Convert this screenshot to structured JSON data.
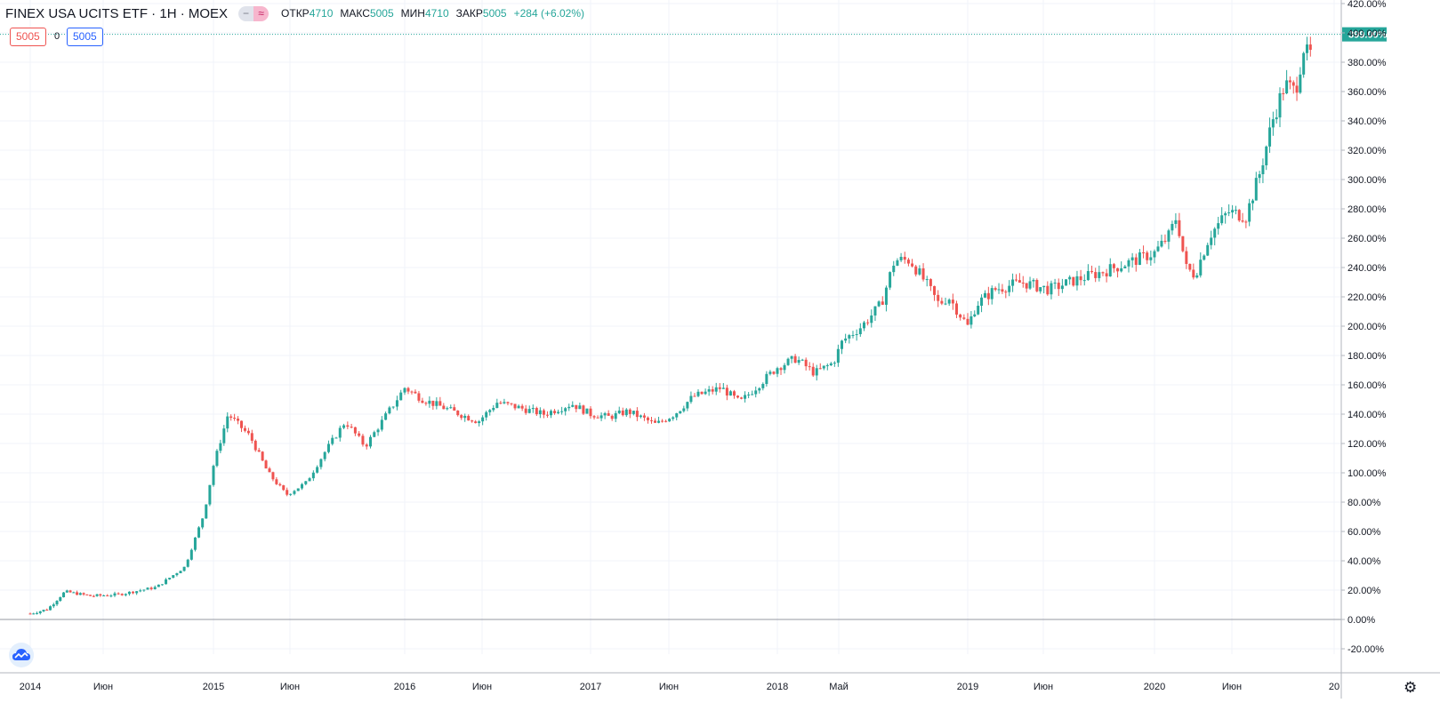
{
  "header": {
    "title": "FINEX USA UCITS ETF · 1Н · MOEX",
    "open_label": "ОТКР",
    "open_value": "4710",
    "high_label": "МАКС",
    "high_value": "5005",
    "low_label": "МИН",
    "low_value": "4710",
    "close_label": "ЗАКР",
    "close_value": "5005",
    "change": "+284 (+6.02%)"
  },
  "inputs": {
    "left_value": "5005",
    "middle_value": "0",
    "right_value": "5005"
  },
  "colors": {
    "up": "#26a69a",
    "down": "#ef5350",
    "grid": "#f0f3fa",
    "axis_text": "#131722"
  },
  "chart_data": {
    "type": "candlestick",
    "ylabel_unit": "%",
    "y_ticks": [
      "420.00%",
      "400.00%",
      "380.00%",
      "360.00%",
      "340.00%",
      "320.00%",
      "300.00%",
      "280.00%",
      "260.00%",
      "240.00%",
      "220.00%",
      "200.00%",
      "180.00%",
      "160.00%",
      "140.00%",
      "120.00%",
      "100.00%",
      "80.00%",
      "60.00%",
      "40.00%",
      "20.00%",
      "0.00%",
      "-20.00%"
    ],
    "ylim": [
      -20,
      420
    ],
    "x_ticks": [
      "2014",
      "Июн",
      "2015",
      "Июн",
      "2016",
      "Июн",
      "2017",
      "Июн",
      "2018",
      "Май",
      "2019",
      "Июн",
      "2020",
      "Июн",
      "20"
    ],
    "current_value": "399.00%",
    "current_y": 399,
    "baseline_y": 0,
    "series_approx": [
      [
        2014.0,
        4
      ],
      [
        2014.1,
        7
      ],
      [
        2014.2,
        19
      ],
      [
        2014.35,
        16
      ],
      [
        2014.5,
        17
      ],
      [
        2014.7,
        22
      ],
      [
        2014.85,
        36
      ],
      [
        2014.95,
        72
      ],
      [
        2015.0,
        105
      ],
      [
        2015.08,
        140
      ],
      [
        2015.2,
        125
      ],
      [
        2015.3,
        100
      ],
      [
        2015.4,
        85
      ],
      [
        2015.5,
        93
      ],
      [
        2015.6,
        115
      ],
      [
        2015.7,
        135
      ],
      [
        2015.8,
        118
      ],
      [
        2015.9,
        138
      ],
      [
        2016.0,
        158
      ],
      [
        2016.1,
        150
      ],
      [
        2016.2,
        145
      ],
      [
        2016.3,
        140
      ],
      [
        2016.4,
        135
      ],
      [
        2016.5,
        148
      ],
      [
        2016.6,
        145
      ],
      [
        2016.75,
        140
      ],
      [
        2016.9,
        147
      ],
      [
        2017.0,
        140
      ],
      [
        2017.1,
        138
      ],
      [
        2017.2,
        142
      ],
      [
        2017.35,
        133
      ],
      [
        2017.45,
        140
      ],
      [
        2017.55,
        152
      ],
      [
        2017.7,
        158
      ],
      [
        2017.8,
        148
      ],
      [
        2017.9,
        160
      ],
      [
        2018.0,
        172
      ],
      [
        2018.1,
        178
      ],
      [
        2018.2,
        168
      ],
      [
        2018.3,
        175
      ],
      [
        2018.35,
        190
      ],
      [
        2018.45,
        200
      ],
      [
        2018.55,
        215
      ],
      [
        2018.62,
        245
      ],
      [
        2018.7,
        245
      ],
      [
        2018.78,
        230
      ],
      [
        2018.85,
        215
      ],
      [
        2018.9,
        220
      ],
      [
        2019.0,
        200
      ],
      [
        2019.05,
        215
      ],
      [
        2019.15,
        225
      ],
      [
        2019.3,
        230
      ],
      [
        2019.45,
        225
      ],
      [
        2019.6,
        232
      ],
      [
        2019.75,
        238
      ],
      [
        2019.9,
        245
      ],
      [
        2020.0,
        250
      ],
      [
        2020.08,
        262
      ],
      [
        2020.12,
        275
      ],
      [
        2020.17,
        240
      ],
      [
        2020.22,
        235
      ],
      [
        2020.3,
        262
      ],
      [
        2020.4,
        278
      ],
      [
        2020.5,
        275
      ],
      [
        2020.58,
        305
      ],
      [
        2020.65,
        340
      ],
      [
        2020.72,
        365
      ],
      [
        2020.78,
        360
      ],
      [
        2020.83,
        392
      ],
      [
        2020.86,
        380
      ],
      [
        2020.88,
        399
      ]
    ]
  }
}
